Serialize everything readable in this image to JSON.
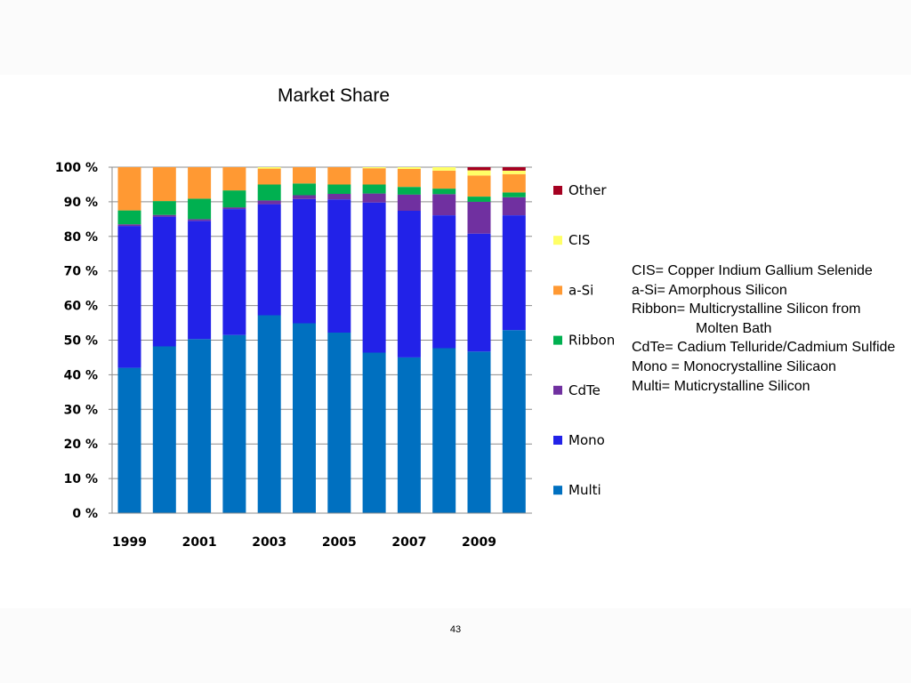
{
  "page": {
    "number": "43"
  },
  "notes": {
    "lines": [
      "CIS= Copper Indium Gallium Selenide",
      "a-Si= Amorphous Silicon",
      "Ribbon= Multicrystalline Silicon from",
      "Molten Bath",
      "CdTe= Cadium Telluride/Cadmium Sulfide",
      "Mono = Monocrystalline Silicaon",
      "Multi= Muticrystalline Silicon"
    ]
  },
  "chart_data": {
    "type": "bar",
    "stacked": true,
    "title": "Market Share",
    "xlabel": "",
    "ylabel": "",
    "ylim": [
      0,
      100
    ],
    "y_ticks": [
      0,
      10,
      20,
      30,
      40,
      50,
      60,
      70,
      80,
      90,
      100
    ],
    "y_tick_suffix": " %",
    "categories": [
      "1999",
      "2000",
      "2001",
      "2002",
      "2003",
      "2004",
      "2005",
      "2006",
      "2007",
      "2008",
      "2009",
      "2010"
    ],
    "x_tick_labels": [
      "1999",
      "",
      "2001",
      "",
      "2003",
      "",
      "2005",
      "",
      "2007",
      "",
      "2009",
      ""
    ],
    "grid": true,
    "legend_position": "right",
    "series": [
      {
        "name": "Multi",
        "color": "#0070c0",
        "values": [
          42.0,
          48.2,
          50.3,
          51.5,
          57.2,
          54.9,
          52.2,
          46.4,
          45.0,
          47.7,
          46.7,
          52.9
        ]
      },
      {
        "name": "Mono",
        "color": "#2222e8",
        "values": [
          41.0,
          37.5,
          34.2,
          36.4,
          32.1,
          35.9,
          38.5,
          43.4,
          42.4,
          38.4,
          34.1,
          33.2
        ]
      },
      {
        "name": "CdTe",
        "color": "#7030a0",
        "values": [
          0.5,
          0.5,
          0.5,
          0.5,
          1.1,
          1.1,
          1.6,
          2.6,
          4.7,
          6.1,
          9.2,
          5.2
        ]
      },
      {
        "name": "Ribbon",
        "color": "#00b050",
        "values": [
          4.0,
          4.0,
          5.9,
          4.9,
          4.6,
          3.4,
          2.7,
          2.6,
          2.2,
          1.6,
          1.5,
          1.4
        ]
      },
      {
        "name": "a-Si",
        "color": "#ff9933",
        "values": [
          12.5,
          9.8,
          9.1,
          6.7,
          4.6,
          4.7,
          5.0,
          4.7,
          5.2,
          5.2,
          6.1,
          5.3
        ]
      },
      {
        "name": "CIS",
        "color": "#ffff66",
        "values": [
          0.0,
          0.0,
          0.0,
          0.0,
          0.4,
          0.0,
          0.0,
          0.3,
          0.5,
          1.0,
          1.5,
          1.0
        ]
      },
      {
        "name": "Other",
        "color": "#a50021",
        "values": [
          0.0,
          0.0,
          0.0,
          0.0,
          0.0,
          0.0,
          0.0,
          0.0,
          0.0,
          0.0,
          0.9,
          1.0
        ]
      }
    ],
    "legend_order": [
      "Other",
      "CIS",
      "a-Si",
      "Ribbon",
      "CdTe",
      "Mono",
      "Multi"
    ]
  }
}
